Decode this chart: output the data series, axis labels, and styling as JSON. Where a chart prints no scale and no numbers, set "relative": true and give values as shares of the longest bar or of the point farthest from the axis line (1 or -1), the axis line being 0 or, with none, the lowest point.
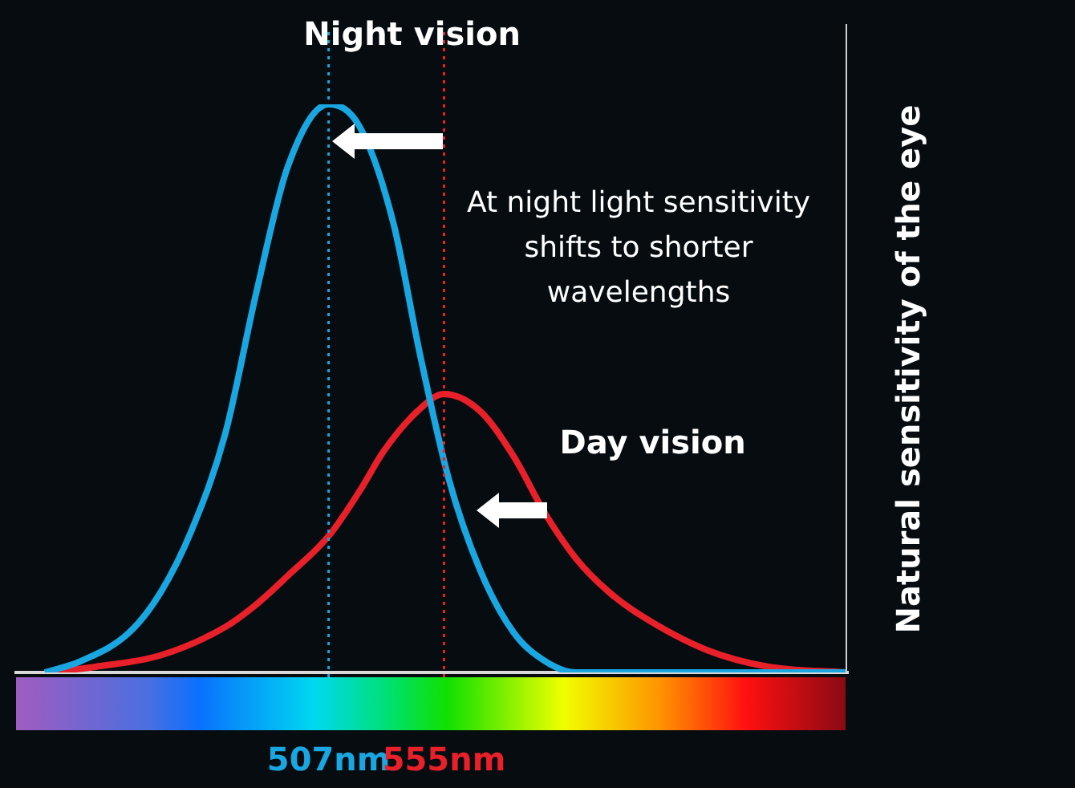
{
  "chart_data": {
    "type": "line",
    "relative": true,
    "ylabel": "Natural sensitivity of the eye",
    "annotations": [
      "At night light sensitivity shifts to shorter wavelengths"
    ],
    "xlim": [
      377,
      722
    ],
    "xticks": [
      {
        "value": 507,
        "label": "507nm"
      },
      {
        "value": 555,
        "label": "555nm"
      }
    ],
    "grid": false,
    "legend": false,
    "marker": "none",
    "line_style": "solid",
    "ref_lines": [
      {
        "axis": "x",
        "value": 507,
        "color": "#1aa6e0",
        "line_style": "dotted"
      },
      {
        "axis": "x",
        "value": 555,
        "color": "#e8202a",
        "line_style": "dotted"
      }
    ],
    "series": [
      {
        "name": "Night vision",
        "color": "#1aa6e0",
        "x": [
          389,
          404,
          424,
          437,
          450,
          464,
          477,
          490,
          507,
          520,
          534,
          545,
          557,
          570,
          584,
          597,
          610,
          722
        ],
        "values": [
          0,
          0.02,
          0.07,
          0.14,
          0.25,
          0.42,
          0.67,
          0.89,
          1,
          0.96,
          0.79,
          0.56,
          0.34,
          0.18,
          0.07,
          0.02,
          0,
          0
        ]
      },
      {
        "name": "Day vision",
        "color": "#e8202a",
        "x": [
          390,
          410,
          437,
          464,
          477,
          490,
          507,
          520,
          530,
          544,
          555,
          570,
          584,
          597,
          610,
          624,
          637,
          664,
          690,
          722
        ],
        "values": [
          0,
          0.01,
          0.03,
          0.08,
          0.12,
          0.17,
          0.24,
          0.32,
          0.39,
          0.46,
          0.49,
          0.46,
          0.38,
          0.28,
          0.2,
          0.14,
          0.1,
          0.04,
          0.01,
          0
        ]
      }
    ]
  }
}
